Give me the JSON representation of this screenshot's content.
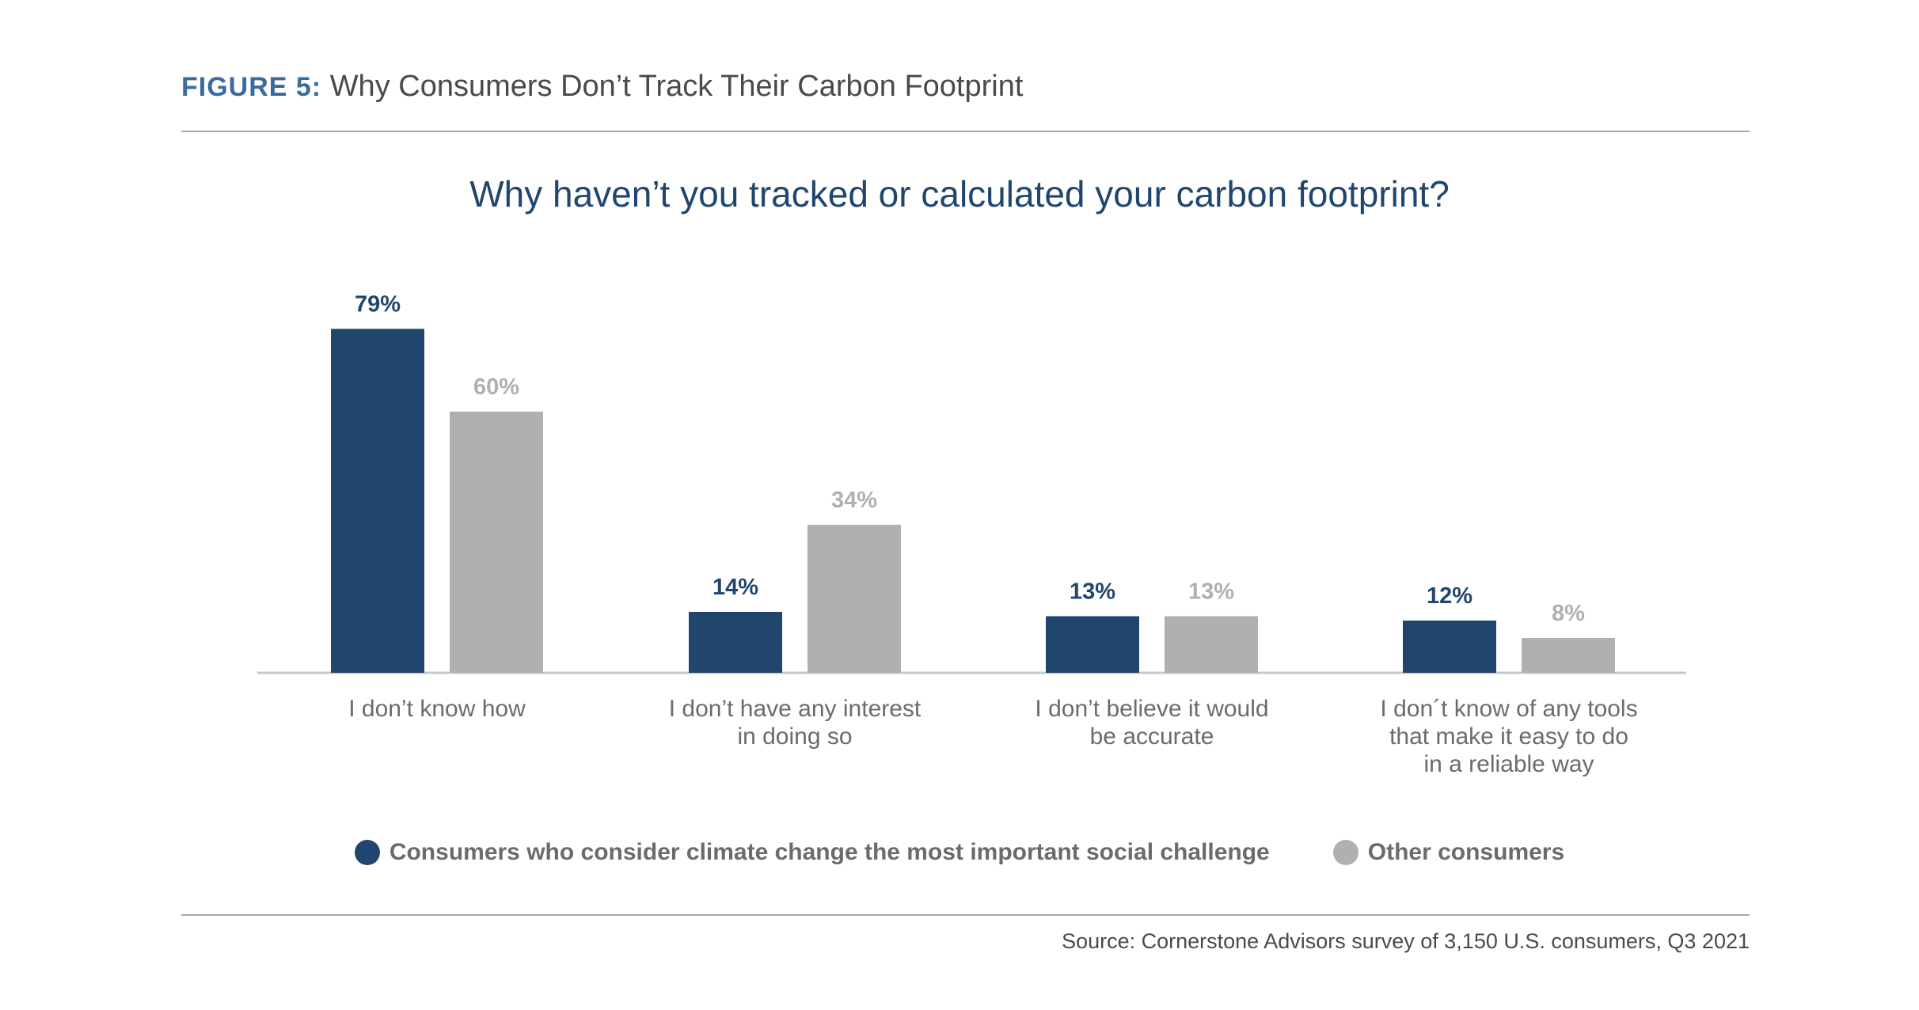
{
  "figure": {
    "label": "FIGURE 5:",
    "title": "Why Consumers Don’t Track Their Carbon Footprint"
  },
  "colors": {
    "series1": "#21466e",
    "series2": "#b0b0b0",
    "header_label": "#3a6a9e",
    "axis": "#c8c8c8",
    "category_text": "#6b6b6b"
  },
  "chart_data": {
    "type": "bar",
    "title": "Why haven’t you tracked or calculated your carbon footprint?",
    "categories": [
      [
        "I don’t know how"
      ],
      [
        "I don’t have any interest",
        "in doing so"
      ],
      [
        "I don’t believe it would",
        "be accurate"
      ],
      [
        "I don´t know of any tools",
        "that make it easy to do",
        "in a reliable way"
      ]
    ],
    "series": [
      {
        "name": "Consumers who consider climate change the most important social challenge",
        "values": [
          79,
          14,
          13,
          12
        ],
        "labels": [
          "79%",
          "14%",
          "13%",
          "12%"
        ]
      },
      {
        "name": "Other consumers",
        "values": [
          60,
          34,
          13,
          8
        ],
        "labels": [
          "60%",
          "34%",
          "13%",
          "8%"
        ]
      }
    ],
    "ylim": [
      0,
      100
    ],
    "grid": false,
    "legend_position": "bottom"
  },
  "source": "Source: Cornerstone Advisors survey of 3,150 U.S. consumers, Q3 2021"
}
